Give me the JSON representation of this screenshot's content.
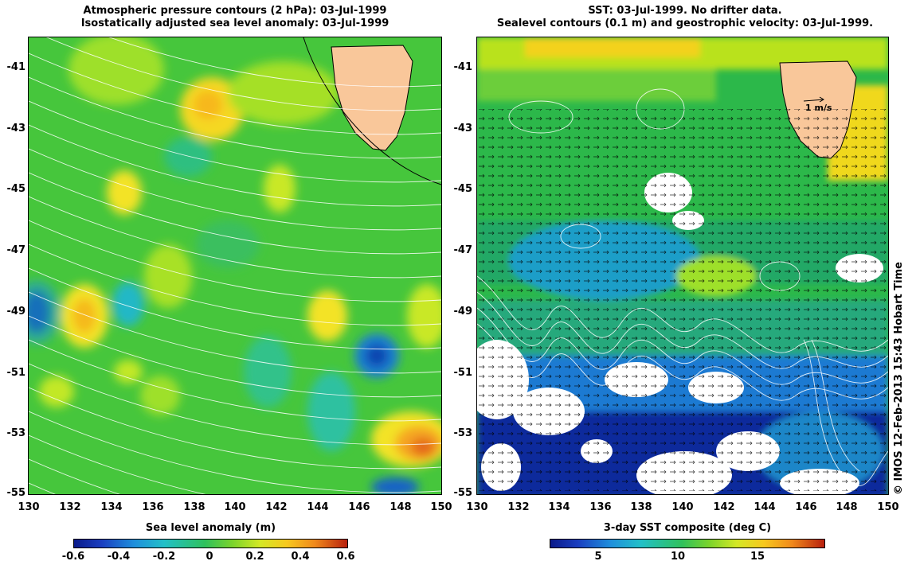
{
  "left_panel": {
    "title_line1": "Atmospheric pressure contours (2 hPa): 03-Jul-1999",
    "title_line2": "Isostatically adjusted sea level anomaly: 03-Jul-1999",
    "colorbar_label": "Sea level anomaly (m)",
    "colorbar_ticks": [
      "-0.6",
      "-0.4",
      "-0.2",
      "0",
      "0.2",
      "0.4",
      "0.6"
    ]
  },
  "right_panel": {
    "title_line1": "SST: 03-Jul-1999. No drifter data.",
    "title_line2": "Sealevel contours (0.1 m) and geostrophic velocity: 03-Jul-1999.",
    "colorbar_label": "3-day SST composite (deg C)",
    "colorbar_ticks": [
      "5",
      "10",
      "15"
    ],
    "velocity_scale_label": "1 m/s"
  },
  "lat_ticks": [
    "-41",
    "-43",
    "-45",
    "-47",
    "-49",
    "-51",
    "-53",
    "-55"
  ],
  "lon_ticks": [
    "130",
    "132",
    "134",
    "136",
    "138",
    "140",
    "142",
    "144",
    "146",
    "148",
    "150"
  ],
  "credit": "© IMOS 12-Feb-2013 15:43 Hobart Time",
  "colors": {
    "land": "#f9c79a",
    "ocean_mid": "#3fc43f",
    "ocean_high": "#b6e61e",
    "ocean_low": "#21b8c8",
    "cold": "#0a2a9e",
    "warm": "#ffb400",
    "hot": "#e84a10"
  }
}
